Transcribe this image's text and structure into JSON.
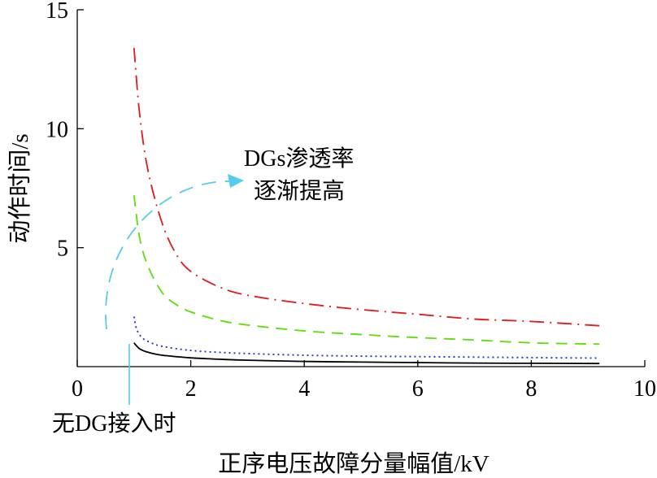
{
  "chart_data": {
    "type": "line",
    "xlabel": "正序电压故障分量幅值/kV",
    "ylabel": "动作时间/s",
    "xlim": [
      0,
      10
    ],
    "ylim": [
      0,
      15
    ],
    "x_ticks": [
      "0",
      "2",
      "4",
      "6",
      "8",
      "10"
    ],
    "x_tick_values": [
      0,
      2,
      4,
      6,
      8,
      10
    ],
    "y_ticks": [
      "5",
      "10",
      "15"
    ],
    "y_tick_values": [
      5,
      10,
      15
    ],
    "grid": false,
    "series": [
      {
        "color": "#000000",
        "style": "solid",
        "x": [
          1.0,
          1.1,
          1.25,
          1.5,
          2.0,
          2.5,
          3.0,
          4.0,
          5.0,
          6.0,
          7.0,
          8.0,
          9.2
        ],
        "y": [
          1.0,
          0.75,
          0.6,
          0.48,
          0.37,
          0.31,
          0.27,
          0.22,
          0.19,
          0.17,
          0.15,
          0.14,
          0.13
        ]
      },
      {
        "color": "#2233dd",
        "style": "dotted",
        "x": [
          1.0,
          1.05,
          1.15,
          1.3,
          1.5,
          2.0,
          2.5,
          3.0,
          4.0,
          5.0,
          6.0,
          7.0,
          8.0,
          9.2
        ],
        "y": [
          2.1,
          1.55,
          1.2,
          1.0,
          0.85,
          0.68,
          0.6,
          0.55,
          0.48,
          0.44,
          0.42,
          0.4,
          0.38,
          0.36
        ]
      },
      {
        "color": "#66dd11",
        "style": "dashed",
        "x": [
          1.0,
          1.1,
          1.25,
          1.5,
          1.75,
          2.0,
          2.5,
          3.0,
          4.0,
          5.0,
          6.0,
          7.0,
          8.0,
          9.2
        ],
        "y": [
          7.2,
          5.4,
          4.2,
          3.1,
          2.6,
          2.3,
          1.95,
          1.75,
          1.5,
          1.35,
          1.22,
          1.12,
          1.0,
          0.95
        ]
      },
      {
        "color": "#dd2222",
        "style": "dash-dot",
        "x": [
          1.0,
          1.1,
          1.25,
          1.5,
          1.75,
          2.0,
          2.5,
          3.0,
          4.0,
          5.0,
          6.0,
          7.0,
          8.0,
          9.2
        ],
        "y": [
          13.4,
          10.6,
          8.2,
          6.0,
          4.7,
          4.0,
          3.35,
          3.0,
          2.65,
          2.4,
          2.2,
          2.0,
          1.9,
          1.72
        ]
      }
    ],
    "annotations": [
      {
        "text_line1": "DGs渗透率",
        "text_line2": "逐渐提高"
      },
      {
        "text": "无DG接入时"
      }
    ],
    "arrow_color": "#55ccee"
  }
}
